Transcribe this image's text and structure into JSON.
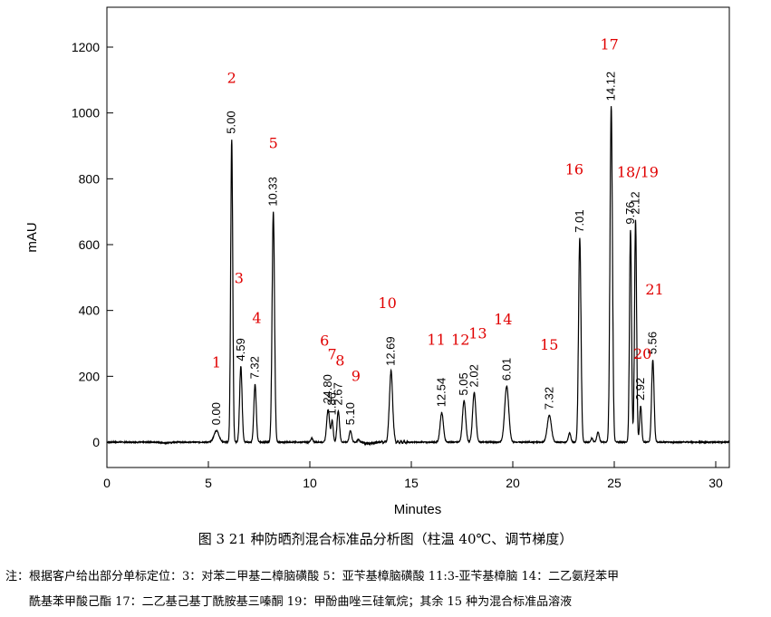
{
  "chart_data": {
    "type": "line",
    "xlabel": "Minutes",
    "ylabel": "mAU",
    "xlim": [
      0,
      31
    ],
    "ylim": [
      -20,
      1330
    ],
    "x_ticks": [
      0,
      5,
      10,
      15,
      20,
      25,
      30
    ],
    "y_ticks": [
      0,
      200,
      400,
      600,
      800,
      1000,
      1200
    ],
    "grid": false,
    "series": [
      {
        "color": "#000000",
        "peaks": [
          {
            "t": 5.4,
            "h": 35,
            "w": 0.12,
            "label": "0.00",
            "num": "1"
          },
          {
            "t": 6.15,
            "h": 920,
            "w": 0.05,
            "label": "5.00",
            "num": "2"
          },
          {
            "t": 6.6,
            "h": 230,
            "w": 0.06,
            "label": "4.59",
            "num": "3"
          },
          {
            "t": 7.3,
            "h": 175,
            "w": 0.06,
            "label": "7.32",
            "num": "4"
          },
          {
            "t": 8.2,
            "h": 700,
            "w": 0.06,
            "label": "10.33",
            "num": "5"
          },
          {
            "t": 10.9,
            "h": 100,
            "w": 0.07,
            "label": "24.80",
            "num": "6"
          },
          {
            "t": 11.1,
            "h": 65,
            "w": 0.05,
            "label": "1.86",
            "num": "7"
          },
          {
            "t": 11.4,
            "h": 95,
            "w": 0.06,
            "label": "2.67",
            "num": "8"
          },
          {
            "t": 12.0,
            "h": 35,
            "w": 0.06,
            "label": "5.10",
            "num": "9"
          },
          {
            "t": 14.0,
            "h": 215,
            "w": 0.08,
            "label": "12.69",
            "num": "10"
          },
          {
            "t": 16.5,
            "h": 90,
            "w": 0.08,
            "label": "12.54",
            "num": "11"
          },
          {
            "t": 17.6,
            "h": 125,
            "w": 0.08,
            "label": "5.05",
            "num": "12"
          },
          {
            "t": 18.1,
            "h": 150,
            "w": 0.08,
            "label": "2.02",
            "num": "13"
          },
          {
            "t": 19.7,
            "h": 170,
            "w": 0.1,
            "label": "6.01",
            "num": "14"
          },
          {
            "t": 21.8,
            "h": 82,
            "w": 0.1,
            "label": "7.32",
            "num": "15"
          },
          {
            "t": 23.3,
            "h": 620,
            "w": 0.06,
            "label": "7.01",
            "num": "16"
          },
          {
            "t": 24.85,
            "h": 1020,
            "w": 0.06,
            "label": "14.12",
            "num": "17"
          },
          {
            "t": 25.8,
            "h": 645,
            "w": 0.05,
            "label": "9.76",
            "num": "18/19"
          },
          {
            "t": 26.05,
            "h": 675,
            "w": 0.05,
            "label": "2.12",
            "num": ""
          },
          {
            "t": 26.3,
            "h": 110,
            "w": 0.05,
            "label": "2.92",
            "num": "20"
          },
          {
            "t": 26.9,
            "h": 250,
            "w": 0.06,
            "label": "5.56",
            "num": "21"
          }
        ],
        "minor_peaks": [
          {
            "t": 10.1,
            "h": 12,
            "w": 0.05
          },
          {
            "t": 12.4,
            "h": 8,
            "w": 0.05
          },
          {
            "t": 22.8,
            "h": 28,
            "w": 0.06
          },
          {
            "t": 24.2,
            "h": 30,
            "w": 0.06
          },
          {
            "t": 23.9,
            "h": 12,
            "w": 0.05
          }
        ]
      }
    ],
    "peak_number_color": "#e00000"
  },
  "caption": "图 3  21 种防晒剂混合标准品分析图（柱温 40℃、调节梯度）",
  "notes": [
    "注：根据客户给出部分单标定位：3：对苯二甲基二樟脑磺酸 5：亚苄基樟脑磺酸 11:3-亚苄基樟脑 14：二乙氨羟苯甲",
    "酰基苯甲酸己酯   17：二乙基己基丁酰胺基三嗪酮   19：甲酚曲唑三硅氧烷；其余 15 种为混合标准品溶液"
  ]
}
